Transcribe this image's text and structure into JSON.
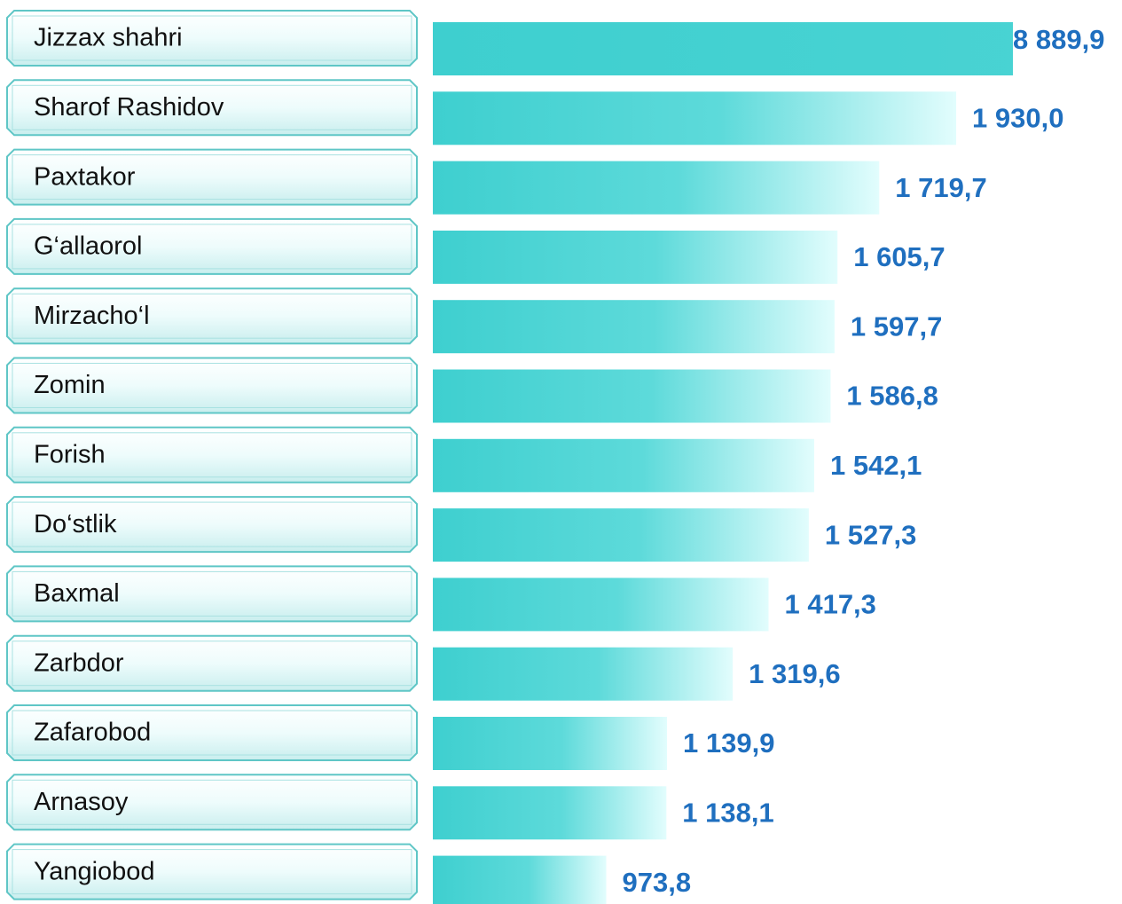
{
  "chart_data": {
    "type": "bar",
    "orientation": "horizontal",
    "categories": [
      "Jizzax  shahri",
      "Sharof Rashidov",
      "Paxtakor",
      "G‘allaorol",
      "Mirzacho‘l",
      "Zomin",
      "Forish",
      "Do‘stlik",
      "Baxmal",
      "Zarbdor",
      "Zafarobod",
      "Arnasoy",
      "Yangiobod"
    ],
    "values": [
      8889.9,
      1930.0,
      1719.7,
      1605.7,
      1597.7,
      1586.8,
      1542.1,
      1527.3,
      1417.3,
      1319.6,
      1139.9,
      1138.1,
      973.8
    ],
    "value_labels": [
      "8 889,9",
      "1 930,0",
      "1 719,7",
      "1 605,7",
      "1 597,7",
      "1 586,8",
      "1 542,1",
      "1 527,3",
      "1 417,3",
      "1 319,6",
      "1 139,9",
      "1 138,1",
      "973,8"
    ],
    "color": "#3ecfcf",
    "xlim": [
      500,
      2085
    ]
  }
}
